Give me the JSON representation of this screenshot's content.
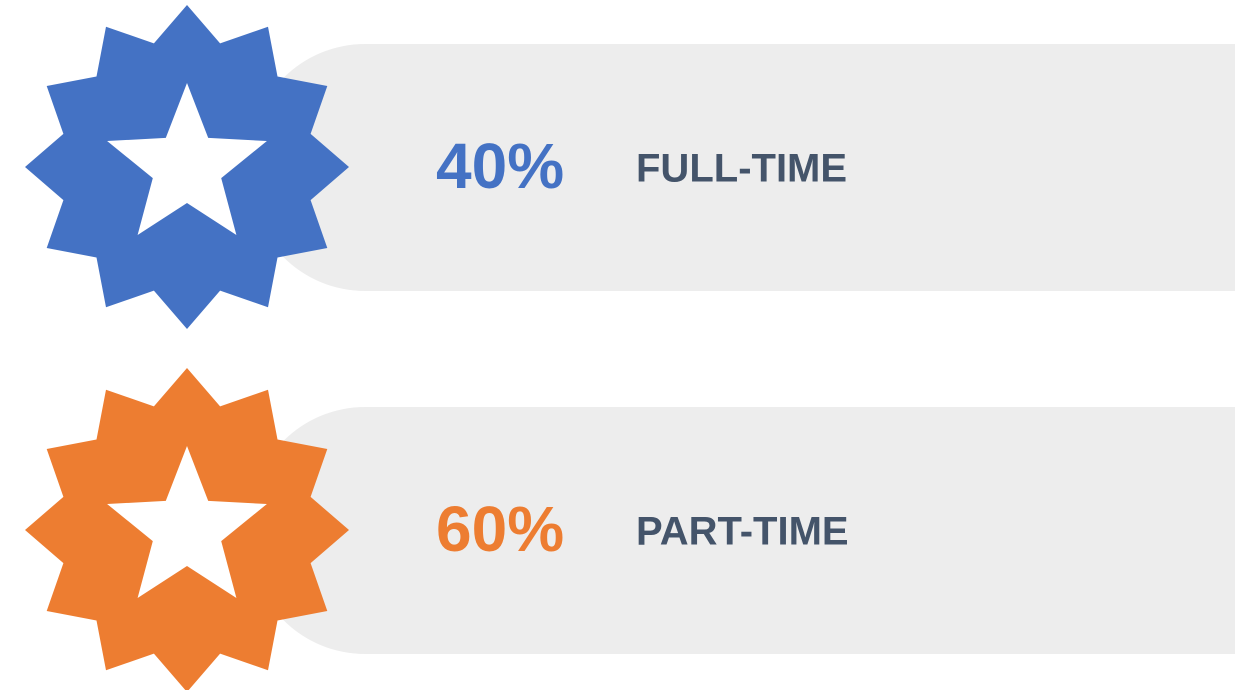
{
  "items": [
    {
      "value": "40%",
      "label": "FULL-TIME",
      "color": "#4472c4"
    },
    {
      "value": "60%",
      "label": "PART-TIME",
      "color": "#ed7d31"
    }
  ]
}
